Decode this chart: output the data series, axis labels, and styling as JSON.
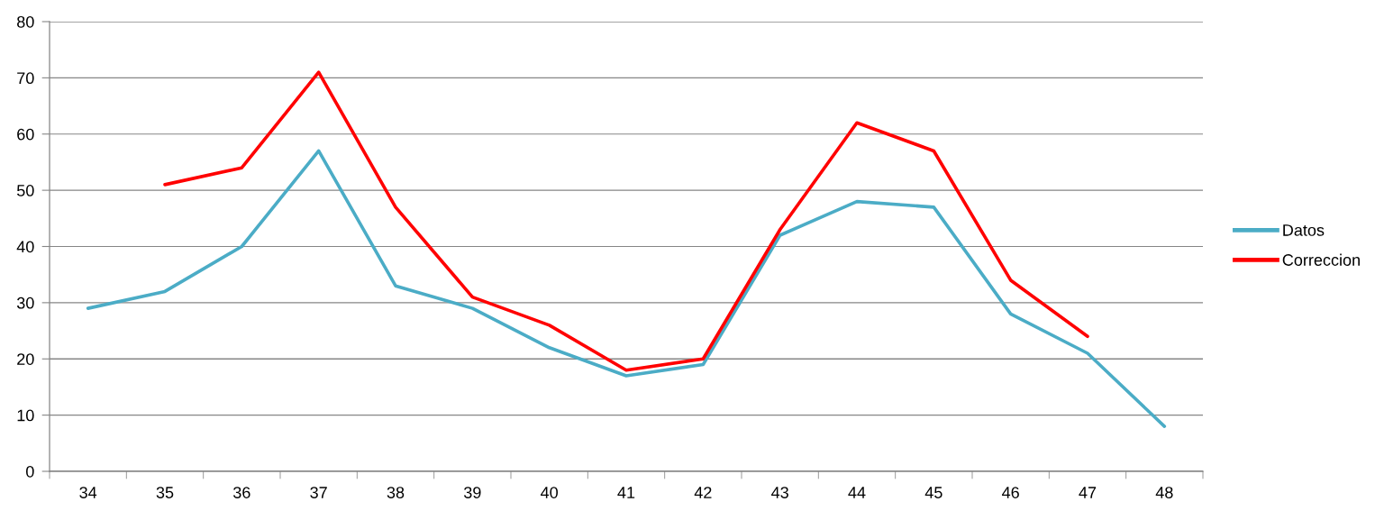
{
  "chart_data": {
    "type": "line",
    "categories": [
      "34",
      "35",
      "36",
      "37",
      "38",
      "39",
      "40",
      "41",
      "42",
      "43",
      "44",
      "45",
      "46",
      "47",
      "48"
    ],
    "series": [
      {
        "name": "Datos",
        "color": "#4bacc6",
        "values": [
          29,
          32,
          40,
          57,
          33,
          29,
          22,
          17,
          19,
          42,
          48,
          47,
          28,
          21,
          8
        ]
      },
      {
        "name": "Correccion",
        "color": "#ff0000",
        "values": [
          null,
          51,
          54,
          71,
          47,
          31,
          26,
          18,
          20,
          43,
          62,
          57,
          34,
          24,
          null
        ]
      }
    ],
    "ylim": [
      0,
      80
    ],
    "yticks": [
      0,
      10,
      20,
      30,
      40,
      50,
      60,
      70,
      80
    ],
    "grid": "y",
    "legend": "right",
    "line_style": "solid"
  }
}
